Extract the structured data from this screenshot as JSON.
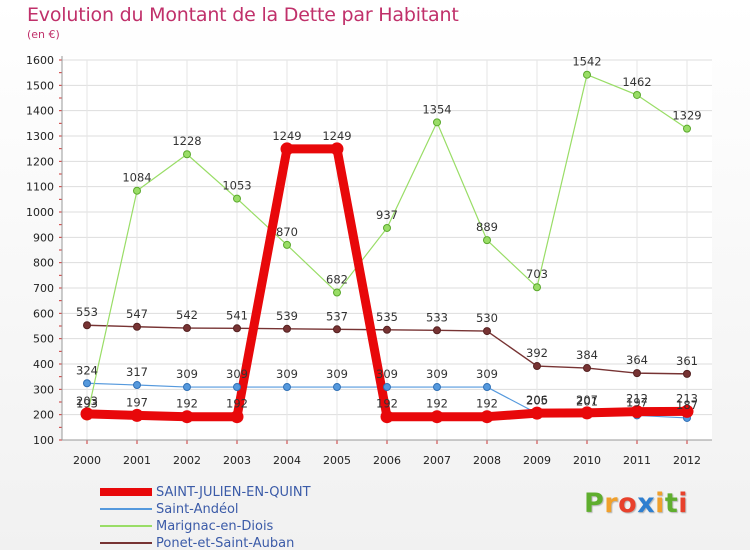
{
  "title": "Evolution du Montant de la Dette par Habitant",
  "subtitle": "(en €)",
  "brand": {
    "text": "Proxiti",
    "letters": [
      "P",
      "r",
      "o",
      "x",
      "i",
      "t",
      "i"
    ],
    "colors": [
      "#5fae2e",
      "#f0a02c",
      "#e8412c",
      "#2e7fd0",
      "#f0a02c",
      "#5fae2e",
      "#e8412c"
    ]
  },
  "chart_data": {
    "type": "line",
    "title": "Evolution du Montant de la Dette par Habitant",
    "subtitle": "(en €)",
    "xlabel": "",
    "ylabel": "",
    "ylim": [
      100,
      1600
    ],
    "yticks": [
      100,
      200,
      300,
      400,
      500,
      600,
      700,
      800,
      900,
      1000,
      1100,
      1200,
      1300,
      1400,
      1500,
      1600
    ],
    "grid": true,
    "legend_position": "bottom-left",
    "categories": [
      "2000",
      "2001",
      "2002",
      "2003",
      "2004",
      "2005",
      "2006",
      "2007",
      "2008",
      "2009",
      "2010",
      "2011",
      "2012"
    ],
    "series": [
      {
        "name": "SAINT-JULIEN-EN-QUINT",
        "color": "#e8080a",
        "line_width": 9,
        "marker_radius": 6,
        "outline": "#e8080a",
        "values": [
          203,
          197,
          192,
          192,
          1249,
          1249,
          192,
          192,
          192,
          206,
          207,
          212,
          213
        ],
        "labels": [
          "203",
          "197",
          "192",
          "192",
          "1249",
          "1249",
          "192",
          "192",
          "192",
          "206",
          "207",
          "212",
          "213"
        ]
      },
      {
        "name": "Saint-Andéol",
        "color": "#5599dd",
        "line_width": 1.2,
        "marker_radius": 3.5,
        "outline": "#2f6fb5",
        "values": [
          324,
          317,
          309,
          309,
          309,
          309,
          309,
          309,
          309,
          205,
          201,
          197,
          187
        ],
        "labels": [
          "324",
          "317",
          "309",
          "309",
          "309",
          "309",
          "309",
          "309",
          "309",
          "205",
          "201",
          "197",
          "187"
        ]
      },
      {
        "name": "Marignac-en-Diois",
        "color": "#99dd66",
        "line_width": 1.2,
        "marker_radius": 3.5,
        "outline": "#5aa82c",
        "values": [
          193,
          1084,
          1228,
          1053,
          870,
          682,
          937,
          1354,
          889,
          703,
          1542,
          1462,
          1329
        ],
        "labels": [
          "193",
          "1084",
          "1228",
          "1053",
          "870",
          "682",
          "937",
          "1354",
          "889",
          "703",
          "1542",
          "1462",
          "1329"
        ]
      },
      {
        "name": "Ponet-et-Saint-Auban",
        "color": "#773333",
        "line_width": 1.4,
        "marker_radius": 3.5,
        "outline": "#552222",
        "values": [
          553,
          547,
          542,
          541,
          539,
          537,
          535,
          533,
          530,
          392,
          384,
          364,
          361
        ],
        "labels": [
          "553",
          "547",
          "542",
          "541",
          "539",
          "537",
          "535",
          "533",
          "530",
          "392",
          "384",
          "364",
          "361"
        ]
      }
    ]
  }
}
